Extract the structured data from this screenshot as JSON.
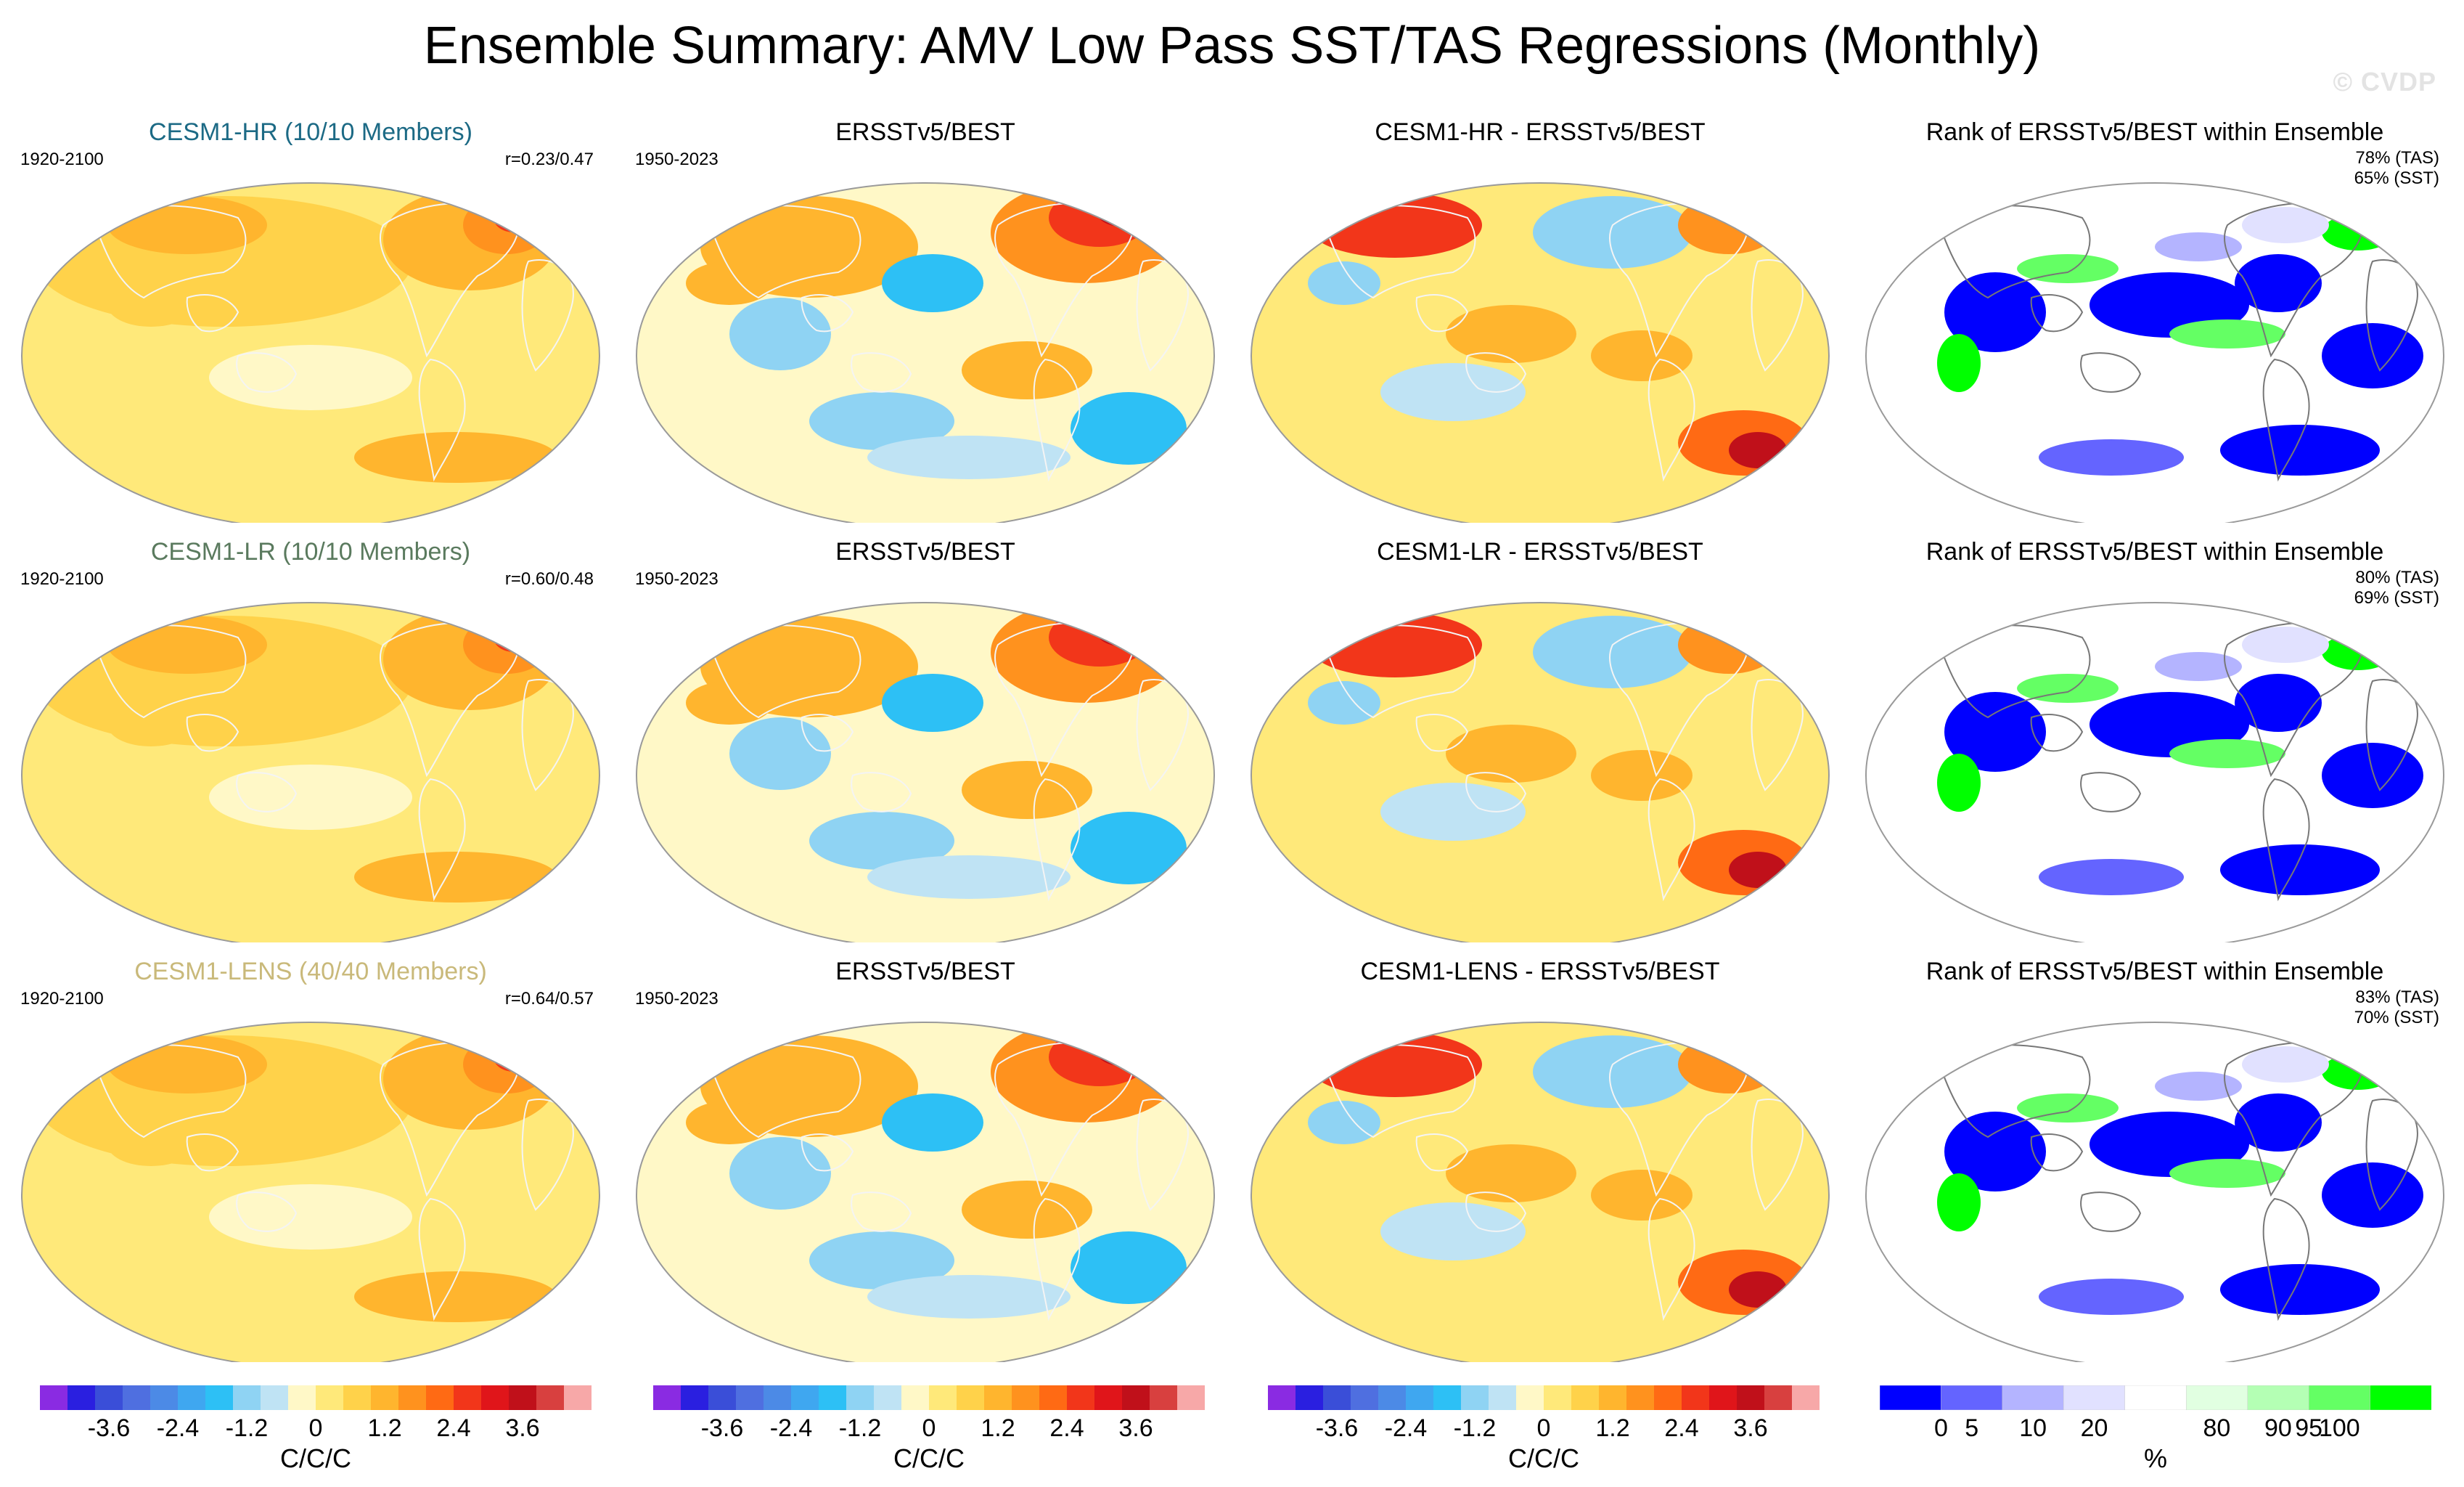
{
  "figure_title": "Ensemble Summary: AMV Low Pass SST/TAS Regressions (Monthly)",
  "watermark": "© CVDP",
  "rows": [
    {
      "model_title": "CESM1-HR (10/10 Members)",
      "model_period": "1920-2100",
      "correlation": "r=0.23/0.47",
      "obs_title": "ERSSTv5/BEST",
      "obs_period": "1950-2023",
      "diff_title": "CESM1-HR - ERSSTv5/BEST",
      "rank_title": "Rank of ERSSTv5/BEST within Ensemble",
      "rank_tas": "78% (TAS)",
      "rank_sst": "65% (SST)"
    },
    {
      "model_title": "CESM1-LR (10/10 Members)",
      "model_period": "1920-2100",
      "correlation": "r=0.60/0.48",
      "obs_title": "ERSSTv5/BEST",
      "obs_period": "1950-2023",
      "diff_title": "CESM1-LR - ERSSTv5/BEST",
      "rank_title": "Rank of ERSSTv5/BEST within Ensemble",
      "rank_tas": "80% (TAS)",
      "rank_sst": "69% (SST)"
    },
    {
      "model_title": "CESM1-LENS (40/40 Members)",
      "model_period": "1920-2100",
      "correlation": "r=0.64/0.57",
      "obs_title": "ERSSTv5/BEST",
      "obs_period": "1950-2023",
      "diff_title": "CESM1-LENS - ERSSTv5/BEST",
      "rank_title": "Rank of ERSSTv5/BEST within Ensemble",
      "rank_tas": "83% (TAS)",
      "rank_sst": "70% (SST)"
    }
  ],
  "colorbars": {
    "regression": {
      "units": "C/C/C",
      "tick_labels": [
        "-3.6",
        "-2.4",
        "-1.2",
        "0",
        "1.2",
        "2.4",
        "3.6"
      ],
      "colors": [
        "#8a2be2",
        "#2a1fe0",
        "#3a4ed8",
        "#4f6fe0",
        "#4c8ae6",
        "#3fa7f0",
        "#2dc0f5",
        "#8fd3f3",
        "#bfe3f4",
        "#fff8c7",
        "#ffe97a",
        "#ffd24a",
        "#ffb52e",
        "#ff921e",
        "#ff6a14",
        "#f2361a",
        "#e0151a",
        "#c0101a",
        "#d8403f",
        "#f7a8a8"
      ]
    },
    "rank": {
      "units": "%",
      "tick_labels": [
        "0",
        "5",
        "10",
        "20",
        "80",
        "90",
        "95",
        "100"
      ],
      "colors": [
        "#0000ff",
        "#6464ff",
        "#b4b4ff",
        "#e1e1ff",
        "#ffffff",
        "#e1ffe1",
        "#b4ffb4",
        "#64ff64",
        "#00ff00"
      ]
    }
  },
  "map_colors": {
    "ocean_edge": "#9a9a9a",
    "coast": "#8c8c8c"
  }
}
